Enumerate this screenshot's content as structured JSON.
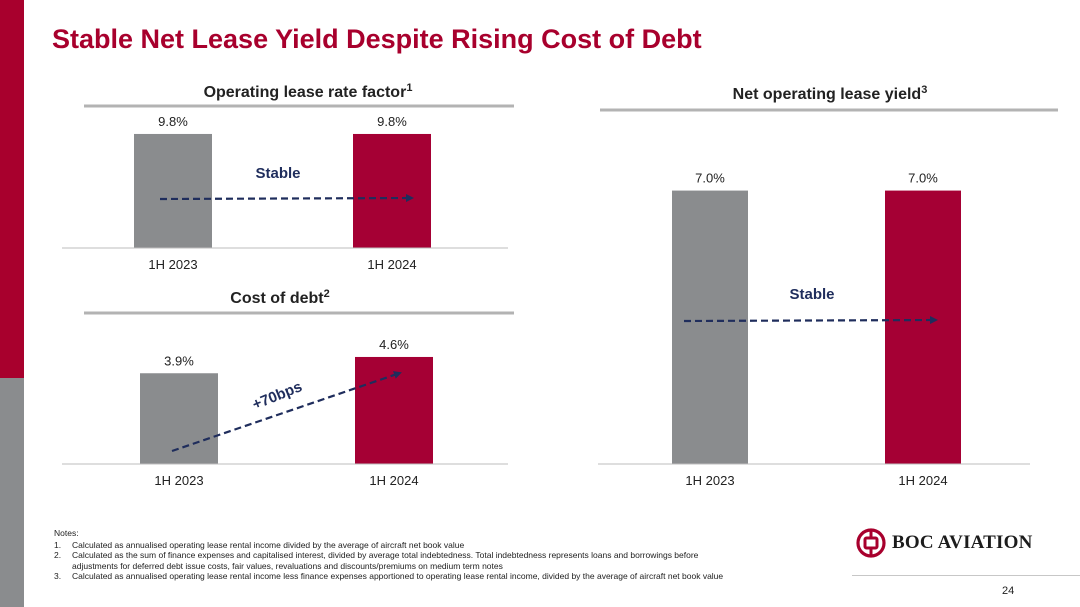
{
  "slide": {
    "title": "Stable Net Lease Yield Despite Rising Cost of Debt",
    "page_number": "24"
  },
  "colors": {
    "brand_red": "#a8002d",
    "bar_gray": "#8a8c8e",
    "bar_red": "#a50034",
    "annotation_navy": "#1f2d5c"
  },
  "chart_data": [
    {
      "id": "lease-rate",
      "type": "bar",
      "title": "Operating lease rate factor",
      "title_sup": "1",
      "categories": [
        "1H 2023",
        "1H 2024"
      ],
      "values": [
        9.8,
        9.8
      ],
      "value_labels": [
        "9.8%",
        "9.8%"
      ],
      "unit": "%",
      "ylim": [
        0,
        11
      ],
      "annotation": "Stable"
    },
    {
      "id": "cost-debt",
      "type": "bar",
      "title": "Cost of debt",
      "title_sup": "2",
      "categories": [
        "1H 2023",
        "1H 2024"
      ],
      "values": [
        3.9,
        4.6
      ],
      "value_labels": [
        "3.9%",
        "4.6%"
      ],
      "unit": "%",
      "ylim": [
        0,
        5.2
      ],
      "annotation": "+70bps"
    },
    {
      "id": "net-yield",
      "type": "bar",
      "title": "Net operating lease yield",
      "title_sup": "3",
      "categories": [
        "1H 2023",
        "1H 2024"
      ],
      "values": [
        7.0,
        7.0
      ],
      "value_labels": [
        "7.0%",
        "7.0%"
      ],
      "unit": "%",
      "ylim": [
        0,
        7.45
      ],
      "annotation": "Stable"
    }
  ],
  "notes": {
    "heading": "Notes:",
    "items": [
      {
        "num": "1.",
        "text": "Calculated as annualised operating lease rental income divided by the average of aircraft net book value"
      },
      {
        "num": "2.",
        "text": "Calculated as the sum of finance expenses and capitalised interest, divided by average total indebtedness. Total indebtedness represents loans and borrowings before adjustments for deferred debt issue costs, fair values, revaluations and discounts/premiums on medium term notes"
      },
      {
        "num": "3.",
        "text": "Calculated as annualised operating lease rental income less finance expenses apportioned to operating lease rental income, divided by the average of aircraft net book value"
      }
    ]
  },
  "logo": {
    "text": "BOC AVIATION"
  }
}
